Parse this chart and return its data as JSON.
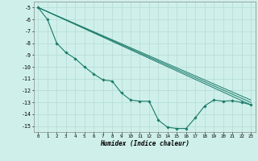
{
  "bg_color": "#cff0ea",
  "grid_color": "#b8ddd7",
  "line_color": "#1a7a6a",
  "xlabel": "Humidex (Indice chaleur)",
  "xlim": [
    -0.5,
    23.5
  ],
  "ylim": [
    -15.5,
    -4.5
  ],
  "yticks": [
    -5,
    -6,
    -7,
    -8,
    -9,
    -10,
    -11,
    -12,
    -13,
    -14,
    -15
  ],
  "xticks": [
    0,
    1,
    2,
    3,
    4,
    5,
    6,
    7,
    8,
    9,
    10,
    11,
    12,
    13,
    14,
    15,
    16,
    17,
    18,
    19,
    20,
    21,
    22,
    23
  ],
  "series": [
    [
      0,
      -5
    ],
    [
      1,
      -6
    ],
    [
      2,
      -8
    ],
    [
      3,
      -8.8
    ],
    [
      4,
      -9.3
    ],
    [
      5,
      -10.0
    ],
    [
      6,
      -10.6
    ],
    [
      7,
      -11.1
    ],
    [
      8,
      -11.2
    ],
    [
      9,
      -12.2
    ],
    [
      10,
      -12.8
    ],
    [
      11,
      -12.9
    ],
    [
      12,
      -12.9
    ],
    [
      13,
      -14.5
    ],
    [
      14,
      -15.1
    ],
    [
      15,
      -15.2
    ],
    [
      16,
      -15.2
    ],
    [
      17,
      -14.3
    ],
    [
      18,
      -13.3
    ],
    [
      19,
      -12.8
    ],
    [
      20,
      -12.9
    ],
    [
      21,
      -12.85
    ],
    [
      22,
      -13.0
    ],
    [
      23,
      -13.2
    ]
  ],
  "straight_lines": [
    [
      [
        0,
        -5
      ],
      [
        23,
        -12.8
      ]
    ],
    [
      [
        0,
        -5
      ],
      [
        23,
        -13.0
      ]
    ],
    [
      [
        0,
        -5
      ],
      [
        23,
        -13.2
      ]
    ]
  ]
}
